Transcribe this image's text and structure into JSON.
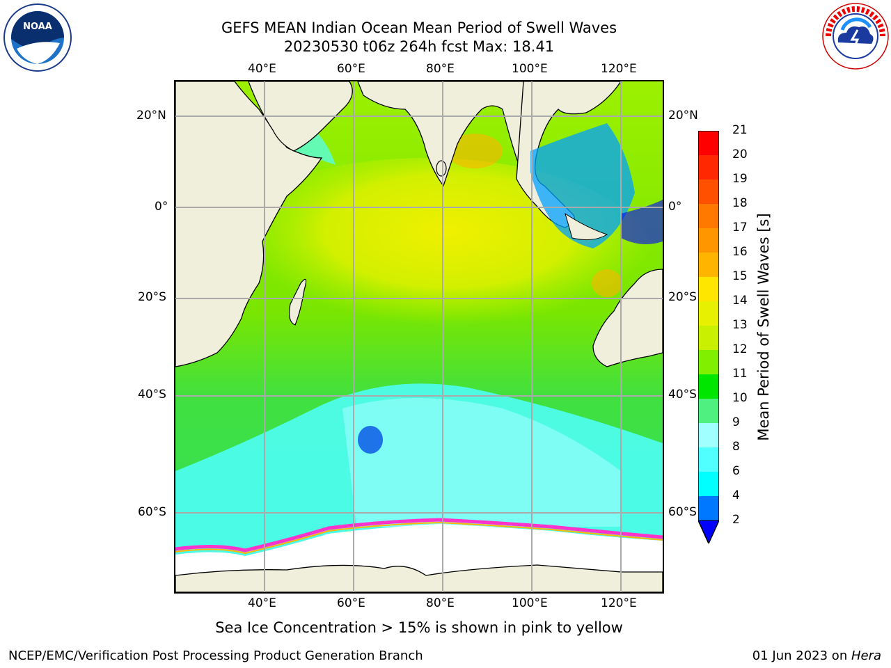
{
  "title_line1": "GEFS MEAN Indian Ocean Mean Period of Swell Waves",
  "title_line2": "20230530 t06z 264h fcst   Max: 18.41",
  "caption": "Sea Ice Concentration > 15% is shown in pink to yellow",
  "footer_left": "NCEP/EMC/Verification Post Processing Product Generation Branch",
  "footer_right_date": "01 Jun 2023 on ",
  "footer_right_host": "Hera",
  "logos": {
    "left": "noaa-logo",
    "right": "nws-logo"
  },
  "map": {
    "lon_ticks": [
      "40°E",
      "60°E",
      "80°E",
      "100°E",
      "120°E"
    ],
    "lat_ticks_left": [
      "20°N",
      "0°",
      "20°S",
      "40°S",
      "60°S"
    ],
    "lat_ticks_right": [
      "20°N",
      "0°",
      "20°S",
      "40°S",
      "60°S"
    ]
  },
  "colorbar": {
    "title": "Mean Period of Swell Waves [s]",
    "labels": [
      "21",
      "20",
      "19",
      "18",
      "17",
      "16",
      "15",
      "14",
      "13",
      "12",
      "11",
      "10",
      "9",
      "8",
      "6",
      "4",
      "2"
    ],
    "colors": [
      "#ff0000",
      "#ff2800",
      "#ff5000",
      "#ff7800",
      "#ff9600",
      "#ffb400",
      "#ffe600",
      "#f0f000",
      "#d2f000",
      "#b4f000",
      "#64e600",
      "#00e600",
      "#50f080",
      "#a0ffff",
      "#50ffff",
      "#00ffff",
      "#00a0ff",
      "#0050ff",
      "#0000ff"
    ]
  }
}
